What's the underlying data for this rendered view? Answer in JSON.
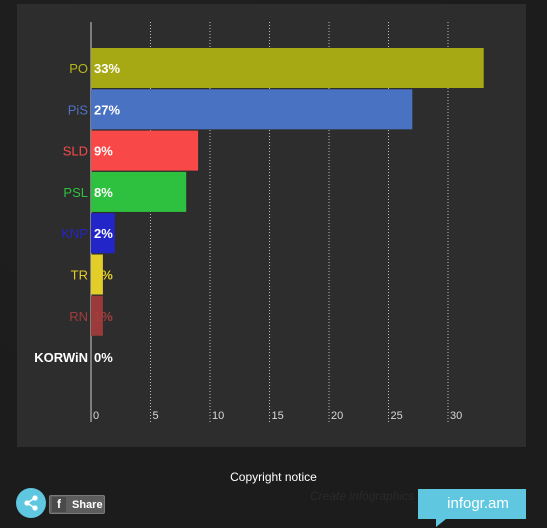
{
  "chart_data": {
    "type": "bar",
    "orientation": "horizontal",
    "categories": [
      "PO",
      "PiS",
      "SLD",
      "PSL",
      "KNP",
      "TR",
      "RN",
      "KORWiN"
    ],
    "values": [
      33,
      27,
      9,
      8,
      2,
      1,
      1,
      0
    ],
    "data_labels": [
      "33%",
      "27%",
      "9%",
      "8%",
      "2%",
      "1%",
      "1%",
      "0%"
    ],
    "colors": [
      "#a7a914",
      "#4a72c2",
      "#f84848",
      "#2ec13f",
      "#2226c8",
      "#e3cd29",
      "#9b3a3a",
      "#ffffff"
    ],
    "label_colors": [
      "#b6b819",
      "#4f73c3",
      "#f74a4a",
      "#2ec13f",
      "#2424c9",
      "#e3cd29",
      "#a33d3d",
      "#ffffff"
    ],
    "data_label_colors": [
      "#ffffff",
      "#ffffff",
      "#ffffff",
      "#ffffff",
      "#ffffff",
      "#e3cd29",
      "#a33d3d",
      "#ffffff"
    ],
    "xlim": [
      0,
      33
    ],
    "xticks": [
      0,
      5,
      10,
      15,
      20,
      25,
      30
    ],
    "grid": true,
    "grid_style": "dotted-vertical"
  },
  "footer": {
    "copyright": "Copyright notice",
    "share_label": "Share",
    "facebook_glyph": "f",
    "create_label": "Create infographics",
    "brand": "infogr.am",
    "share_icon": "share-icon",
    "facebook_icon": "facebook-icon"
  },
  "colors": {
    "panel": "#2d2d2d",
    "background": "#1c1c1c",
    "brand": "#5fc8e0"
  }
}
